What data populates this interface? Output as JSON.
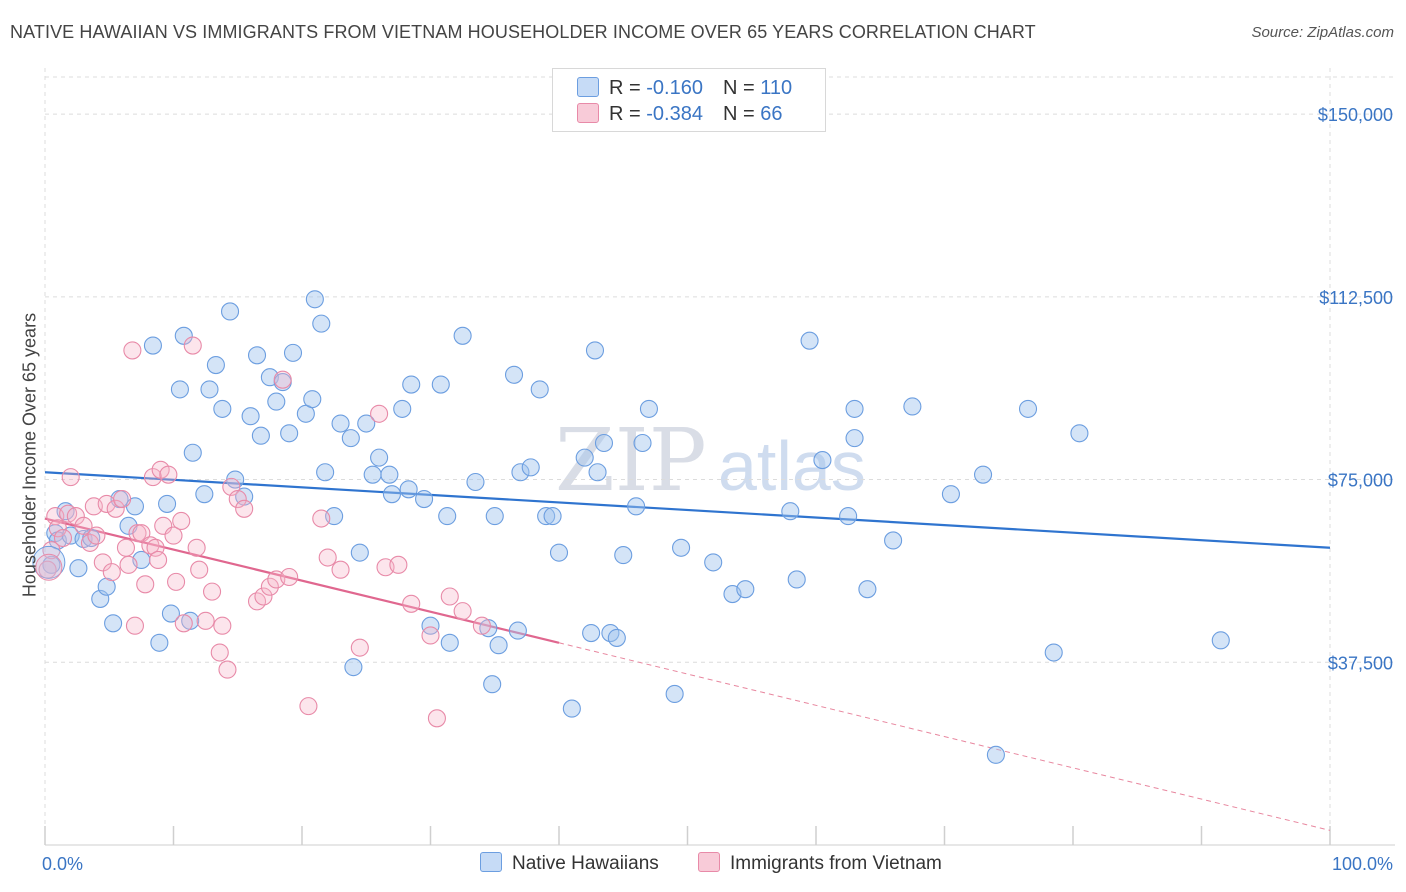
{
  "title": "NATIVE HAWAIIAN VS IMMIGRANTS FROM VIETNAM HOUSEHOLDER INCOME OVER 65 YEARS CORRELATION CHART",
  "source": "Source: ZipAtlas.com",
  "watermark": {
    "part1": "ZIP",
    "part2": "atlas"
  },
  "legend": {
    "r_label": "R =",
    "n_label": "N =",
    "rows": [
      {
        "r": "-0.160",
        "n": "110",
        "color": "#6c9ee0",
        "fill": "#c6dbf6"
      },
      {
        "r": "-0.384",
        "n": "66",
        "color": "#e88aa8",
        "fill": "#f8cbd8"
      }
    ]
  },
  "bottom_legend": [
    "Native Hawaiians",
    "Immigrants from Vietnam"
  ],
  "chart_data": {
    "type": "scatter",
    "title": "NATIVE HAWAIIAN VS IMMIGRANTS FROM VIETNAM HOUSEHOLDER INCOME OVER 65 YEARS CORRELATION CHART",
    "xlabel": "",
    "ylabel": "Householder Income Over 65 years",
    "xlim": [
      0,
      100
    ],
    "ylim": [
      0,
      157000
    ],
    "x_tick_labels": [
      "0.0%",
      "100.0%"
    ],
    "y_ticks": [
      37500,
      75000,
      112500,
      150000
    ],
    "y_tick_labels": [
      "$37,500",
      "$75,000",
      "$112,500",
      "$150,000"
    ],
    "grid": true,
    "legend_position": "top-center",
    "series": [
      {
        "name": "Native Hawaiians",
        "color": "#6c9ee0",
        "trend": {
          "x": [
            0,
            100
          ],
          "y": [
            76500,
            61000
          ]
        },
        "points": [
          [
            0.5,
            57500
          ],
          [
            0.8,
            64000
          ],
          [
            1.0,
            62500
          ],
          [
            1.6,
            68500
          ],
          [
            2.0,
            63500
          ],
          [
            2.6,
            56800
          ],
          [
            3.0,
            62800
          ],
          [
            3.6,
            63000
          ],
          [
            4.3,
            50500
          ],
          [
            4.8,
            53000
          ],
          [
            5.3,
            45500
          ],
          [
            5.8,
            71000
          ],
          [
            6.5,
            65500
          ],
          [
            7.0,
            69500
          ],
          [
            7.5,
            58500
          ],
          [
            8.4,
            102500
          ],
          [
            8.9,
            41500
          ],
          [
            9.5,
            70000
          ],
          [
            9.8,
            47500
          ],
          [
            10.5,
            93500
          ],
          [
            10.8,
            104500
          ],
          [
            11.3,
            46000
          ],
          [
            11.5,
            80500
          ],
          [
            12.4,
            72000
          ],
          [
            12.8,
            93500
          ],
          [
            13.3,
            98500
          ],
          [
            13.8,
            89500
          ],
          [
            14.4,
            109500
          ],
          [
            14.8,
            75000
          ],
          [
            15.5,
            71500
          ],
          [
            16.0,
            88000
          ],
          [
            16.5,
            100500
          ],
          [
            16.8,
            84000
          ],
          [
            17.5,
            96000
          ],
          [
            18.0,
            91000
          ],
          [
            18.5,
            95000
          ],
          [
            19.0,
            84500
          ],
          [
            19.3,
            101000
          ],
          [
            20.3,
            88500
          ],
          [
            20.8,
            91500
          ],
          [
            21.0,
            112000
          ],
          [
            21.5,
            107000
          ],
          [
            21.8,
            76500
          ],
          [
            22.5,
            67500
          ],
          [
            23.0,
            86500
          ],
          [
            23.8,
            83500
          ],
          [
            24.0,
            36500
          ],
          [
            24.5,
            60000
          ],
          [
            25.0,
            86500
          ],
          [
            25.5,
            76000
          ],
          [
            26.0,
            79500
          ],
          [
            26.8,
            76000
          ],
          [
            27.0,
            72000
          ],
          [
            27.8,
            89500
          ],
          [
            28.3,
            73000
          ],
          [
            28.5,
            94500
          ],
          [
            29.5,
            71000
          ],
          [
            30.0,
            45000
          ],
          [
            30.8,
            94500
          ],
          [
            31.3,
            67500
          ],
          [
            31.5,
            41500
          ],
          [
            32.5,
            104500
          ],
          [
            33.5,
            74500
          ],
          [
            34.5,
            44500
          ],
          [
            34.8,
            33000
          ],
          [
            35.0,
            67500
          ],
          [
            35.3,
            41000
          ],
          [
            36.5,
            96500
          ],
          [
            36.8,
            44000
          ],
          [
            37.0,
            76500
          ],
          [
            37.8,
            77500
          ],
          [
            38.5,
            93500
          ],
          [
            39.0,
            67500
          ],
          [
            39.5,
            67500
          ],
          [
            40.0,
            60000
          ],
          [
            41.0,
            28000
          ],
          [
            42.0,
            79500
          ],
          [
            42.5,
            43500
          ],
          [
            42.8,
            101500
          ],
          [
            43.0,
            76500
          ],
          [
            43.5,
            82500
          ],
          [
            44.0,
            43500
          ],
          [
            44.5,
            42500
          ],
          [
            45.0,
            59500
          ],
          [
            46.0,
            69500
          ],
          [
            46.5,
            82500
          ],
          [
            47.0,
            89500
          ],
          [
            49.0,
            31000
          ],
          [
            49.5,
            61000
          ],
          [
            52.0,
            58000
          ],
          [
            53.5,
            51500
          ],
          [
            54.5,
            52500
          ],
          [
            58.0,
            68500
          ],
          [
            58.5,
            54500
          ],
          [
            59.5,
            103500
          ],
          [
            60.5,
            79000
          ],
          [
            62.5,
            67500
          ],
          [
            63.0,
            89500
          ],
          [
            63.0,
            83500
          ],
          [
            64.0,
            52500
          ],
          [
            66.0,
            62500
          ],
          [
            67.5,
            90000
          ],
          [
            70.5,
            72000
          ],
          [
            73.0,
            76000
          ],
          [
            74.0,
            18500
          ],
          [
            76.5,
            89500
          ],
          [
            78.5,
            39500
          ],
          [
            80.5,
            84500
          ],
          [
            91.5,
            42000
          ]
        ]
      },
      {
        "name": "Immigrants from Vietnam",
        "color": "#e88aa8",
        "trend": {
          "x": [
            0,
            40
          ],
          "y": [
            67000,
            41500
          ]
        },
        "trend_extension": {
          "x": [
            40,
            100
          ],
          "y": [
            41500,
            3000
          ]
        },
        "points": [
          [
            0.2,
            56500
          ],
          [
            0.5,
            60500
          ],
          [
            0.8,
            67500
          ],
          [
            1.0,
            65000
          ],
          [
            1.4,
            63000
          ],
          [
            1.8,
            68000
          ],
          [
            2.0,
            75500
          ],
          [
            2.4,
            67500
          ],
          [
            3.0,
            65500
          ],
          [
            3.5,
            62000
          ],
          [
            3.8,
            69500
          ],
          [
            4.0,
            63500
          ],
          [
            4.5,
            58000
          ],
          [
            4.8,
            70000
          ],
          [
            5.2,
            56000
          ],
          [
            5.5,
            69000
          ],
          [
            6.0,
            71000
          ],
          [
            6.3,
            61000
          ],
          [
            6.5,
            57500
          ],
          [
            6.8,
            101500
          ],
          [
            7.0,
            45000
          ],
          [
            7.2,
            64000
          ],
          [
            7.5,
            64000
          ],
          [
            7.8,
            53500
          ],
          [
            8.2,
            61500
          ],
          [
            8.4,
            75500
          ],
          [
            8.6,
            61000
          ],
          [
            8.8,
            58500
          ],
          [
            9.0,
            77000
          ],
          [
            9.2,
            65500
          ],
          [
            9.6,
            76000
          ],
          [
            10.0,
            63500
          ],
          [
            10.2,
            54000
          ],
          [
            10.6,
            66500
          ],
          [
            10.8,
            45500
          ],
          [
            11.5,
            102500
          ],
          [
            11.8,
            61000
          ],
          [
            12.0,
            56500
          ],
          [
            12.5,
            46000
          ],
          [
            13.0,
            52000
          ],
          [
            13.6,
            39500
          ],
          [
            13.8,
            45000
          ],
          [
            14.2,
            36000
          ],
          [
            14.5,
            73500
          ],
          [
            15.0,
            71000
          ],
          [
            15.5,
            69000
          ],
          [
            16.5,
            50000
          ],
          [
            17.0,
            51000
          ],
          [
            17.5,
            53000
          ],
          [
            18.0,
            54500
          ],
          [
            18.5,
            95500
          ],
          [
            19.0,
            55000
          ],
          [
            20.5,
            28500
          ],
          [
            21.5,
            67000
          ],
          [
            22.0,
            59000
          ],
          [
            23.0,
            56500
          ],
          [
            24.5,
            40500
          ],
          [
            26.0,
            88500
          ],
          [
            26.5,
            57000
          ],
          [
            27.5,
            57500
          ],
          [
            28.5,
            49500
          ],
          [
            30.0,
            43000
          ],
          [
            30.5,
            26000
          ],
          [
            31.5,
            51000
          ],
          [
            32.5,
            48000
          ],
          [
            34.0,
            45000
          ]
        ]
      }
    ]
  }
}
